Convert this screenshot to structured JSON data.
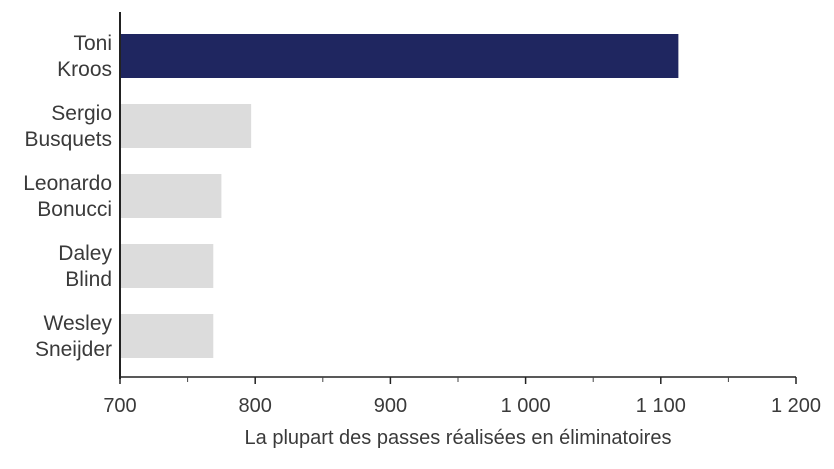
{
  "chart_data": {
    "type": "bar",
    "orientation": "horizontal",
    "categories": [
      [
        "Toni",
        "Kroos"
      ],
      [
        "Sergio",
        "Busquets"
      ],
      [
        "Leonardo",
        "Bonucci"
      ],
      [
        "Daley",
        "Blind"
      ],
      [
        "Wesley",
        "Sneijder"
      ]
    ],
    "values": [
      1113,
      797,
      775,
      769,
      769
    ],
    "colors": [
      "#1f2660",
      "#dcdcdc",
      "#dcdcdc",
      "#dcdcdc",
      "#dcdcdc"
    ],
    "xlim": [
      700,
      1200
    ],
    "xticks": [
      700,
      800,
      900,
      1000,
      1100,
      1200
    ],
    "xtick_labels": [
      "700",
      "800",
      "900",
      "1 000",
      "1 100",
      "1 200"
    ],
    "xlabel": "La plupart des passes réalisées en éliminatoires",
    "ylabel": "",
    "title": "",
    "grid": false
  }
}
